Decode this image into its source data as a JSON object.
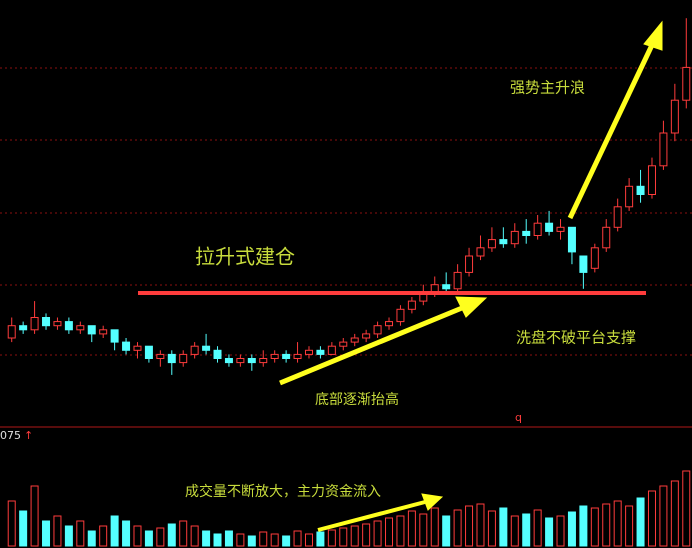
{
  "chart_data": {
    "type": "candlestick",
    "open": [
      20,
      23,
      22,
      25,
      23,
      24,
      22,
      23,
      21,
      22,
      19,
      17,
      18,
      15,
      16,
      14,
      16,
      18,
      17,
      15,
      14,
      15,
      14,
      15,
      16,
      15,
      16,
      17,
      16,
      18,
      19,
      20,
      21,
      23,
      24,
      27,
      29,
      31,
      33,
      32,
      36,
      40,
      42,
      44,
      43,
      46,
      45,
      48,
      46,
      47,
      40,
      37,
      42,
      47,
      52,
      57,
      55,
      62,
      70,
      78
    ],
    "close": [
      23,
      22,
      25,
      23,
      24,
      22,
      23,
      21,
      22,
      19,
      17,
      18,
      15,
      16,
      14,
      16,
      18,
      17,
      15,
      14,
      15,
      14,
      15,
      16,
      15,
      16,
      17,
      16,
      18,
      19,
      20,
      21,
      23,
      24,
      27,
      29,
      31,
      33,
      32,
      36,
      40,
      42,
      44,
      43,
      46,
      45,
      48,
      46,
      47,
      41,
      36,
      42,
      47,
      52,
      57,
      55,
      62,
      70,
      78,
      86
    ],
    "high": [
      25,
      24,
      29,
      26,
      25,
      25,
      24,
      23,
      23,
      22,
      20,
      19,
      18,
      17,
      17,
      17,
      19,
      21,
      18,
      16,
      16,
      16,
      17,
      17,
      17,
      19,
      18,
      18,
      19,
      20,
      21,
      22,
      24,
      25,
      28,
      30,
      33,
      35,
      36,
      38,
      42,
      45,
      47,
      47,
      48,
      49,
      50,
      51,
      49,
      47,
      40,
      43,
      49,
      54,
      59,
      61,
      64,
      73,
      82,
      98
    ],
    "low": [
      19,
      21,
      21,
      22,
      22,
      21,
      21,
      19,
      20,
      17,
      16,
      15,
      14,
      13,
      11,
      13,
      15,
      16,
      14,
      13,
      13,
      12,
      13,
      14,
      14,
      14,
      15,
      15,
      16,
      17,
      18,
      19,
      20,
      22,
      23,
      26,
      28,
      30,
      31,
      31,
      35,
      39,
      41,
      42,
      42,
      43,
      44,
      45,
      44,
      38,
      32,
      36,
      41,
      46,
      51,
      53,
      54,
      61,
      68,
      76
    ],
    "volume": [
      45,
      35,
      60,
      25,
      30,
      20,
      25,
      15,
      20,
      30,
      25,
      20,
      15,
      18,
      22,
      25,
      20,
      15,
      12,
      15,
      12,
      10,
      14,
      12,
      10,
      15,
      12,
      14,
      16,
      18,
      20,
      22,
      25,
      28,
      30,
      35,
      32,
      38,
      30,
      36,
      40,
      42,
      35,
      38,
      30,
      32,
      36,
      28,
      30,
      34,
      40,
      38,
      42,
      45,
      40,
      48,
      55,
      60,
      65,
      75
    ],
    "ylim": [
      0,
      100
    ],
    "volume_ylim": [
      0,
      100
    ],
    "up_color": "#ff3c3c",
    "down_color": "#54ffff",
    "annotations": [
      "拉升式建仓",
      "强势主升浪",
      "洗盘不破平台支撑",
      "底部逐渐抬高",
      "成交量不断放大，主力资金流入"
    ],
    "indicator_label": "075",
    "marker_label": "q"
  }
}
